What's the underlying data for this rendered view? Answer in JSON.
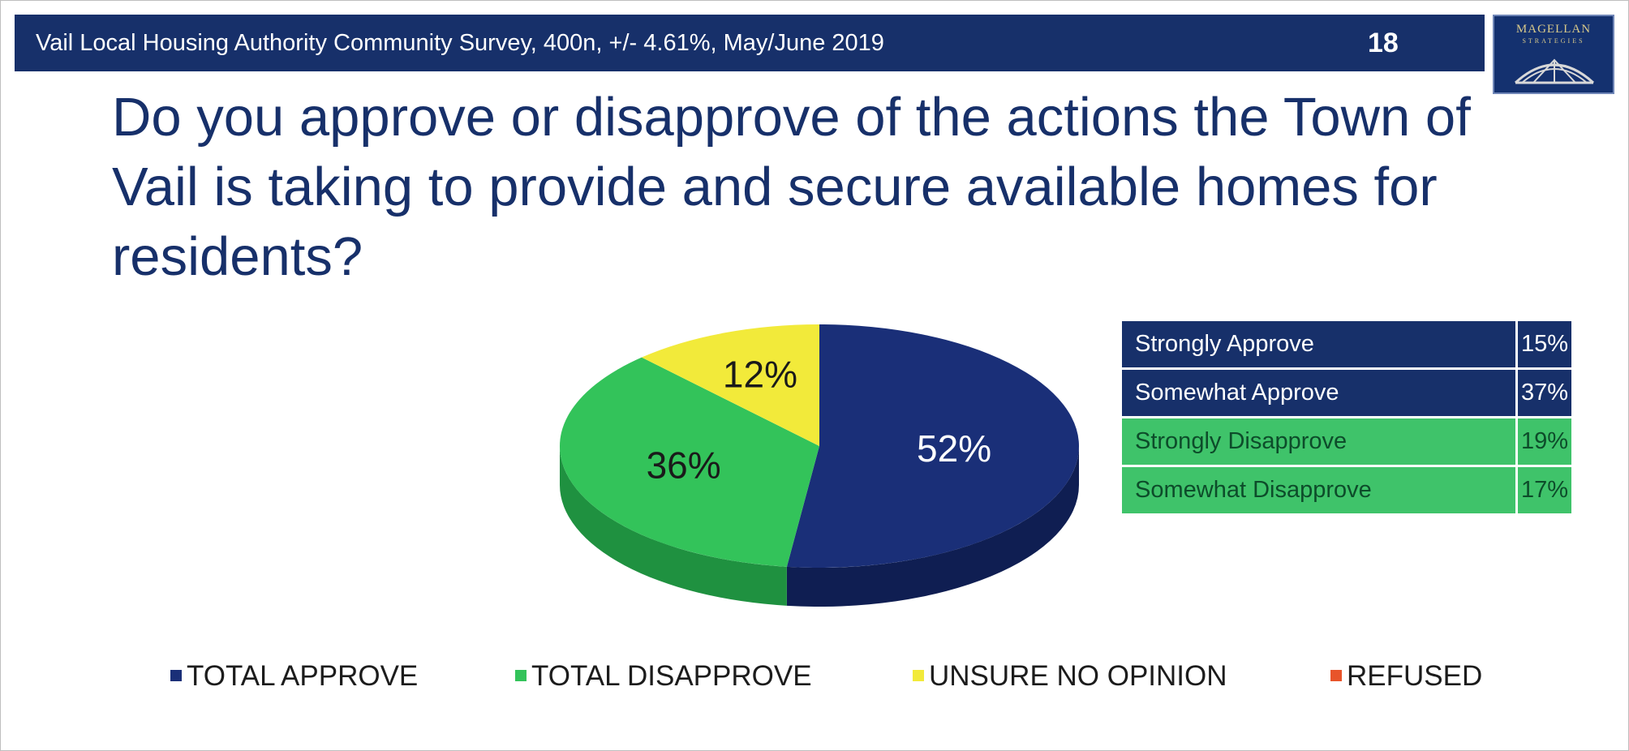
{
  "header": {
    "text": "Vail Local Housing Authority Community Survey, 400n, +/- 4.61%, May/June 2019",
    "page_number": "18"
  },
  "logo": {
    "name": "MAGELLAN",
    "subname": "STRATEGIES",
    "icon": "globe-arc-icon"
  },
  "title": "Do you approve or disapprove of the actions the Town of Vail is taking to provide and secure available homes for residents?",
  "colors": {
    "approve": "#1a2f78",
    "disapprove": "#33c35a",
    "unsure": "#f2ea3a",
    "refused": "#e8542a",
    "header_bg": "#17306a"
  },
  "chart_data": {
    "type": "pie",
    "slices": [
      {
        "label": "TOTAL APPROVE",
        "value": 52,
        "display": "52%"
      },
      {
        "label": "TOTAL DISAPPROVE",
        "value": 36,
        "display": "36%"
      },
      {
        "label": "UNSURE NO OPINION",
        "value": 12,
        "display": "12%"
      },
      {
        "label": "REFUSED",
        "value": 0,
        "display": ""
      }
    ],
    "legend_position": "bottom"
  },
  "breakdown_table": [
    {
      "label": "Strongly Approve",
      "value": "15%",
      "group": "approve"
    },
    {
      "label": "Somewhat Approve",
      "value": "37%",
      "group": "approve"
    },
    {
      "label": "Strongly Disapprove",
      "value": "19%",
      "group": "disapprove"
    },
    {
      "label": "Somewhat Disapprove",
      "value": "17%",
      "group": "disapprove"
    }
  ]
}
